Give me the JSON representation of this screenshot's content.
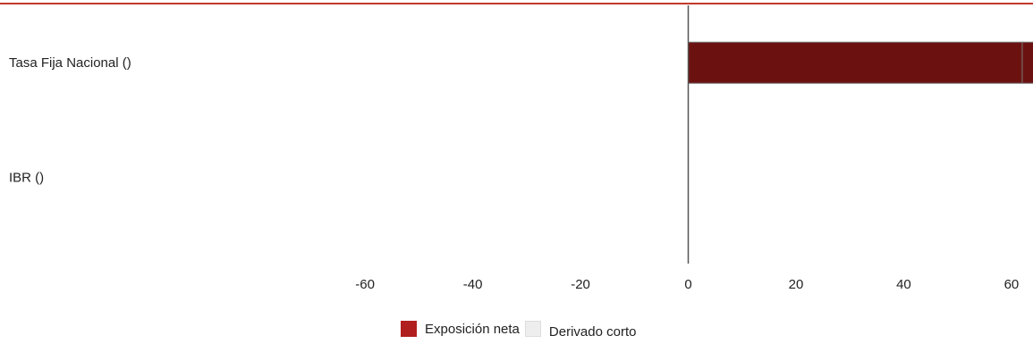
{
  "chart_data": {
    "type": "bar",
    "orientation": "horizontal",
    "stacked": true,
    "categories": [
      "Tasa Fija Nacional ()",
      "IBR ()"
    ],
    "series": [
      {
        "name": "Exposición neta",
        "values": [
          62,
          0
        ],
        "color": "#6b1210"
      },
      {
        "name": "Derivado corto",
        "values": [
          3,
          0
        ],
        "color": "#6b1210"
      }
    ],
    "x_ticks": [
      -60,
      -40,
      -20,
      0,
      20,
      40,
      60
    ],
    "xlim": [
      -65.5,
      64
    ],
    "grid": false,
    "legend_placement": "bottom-center",
    "xlabel": "",
    "ylabel": "",
    "title": ""
  },
  "legend": [
    {
      "label": "Exposición neta",
      "swatch_color": "#b01e1e"
    },
    {
      "label": "Derivado corto",
      "swatch_color": "#eeeeee"
    }
  ],
  "colors": {
    "top_rule": "#c0392b",
    "zero_axis": "#555555",
    "bar_border": "#777777"
  }
}
